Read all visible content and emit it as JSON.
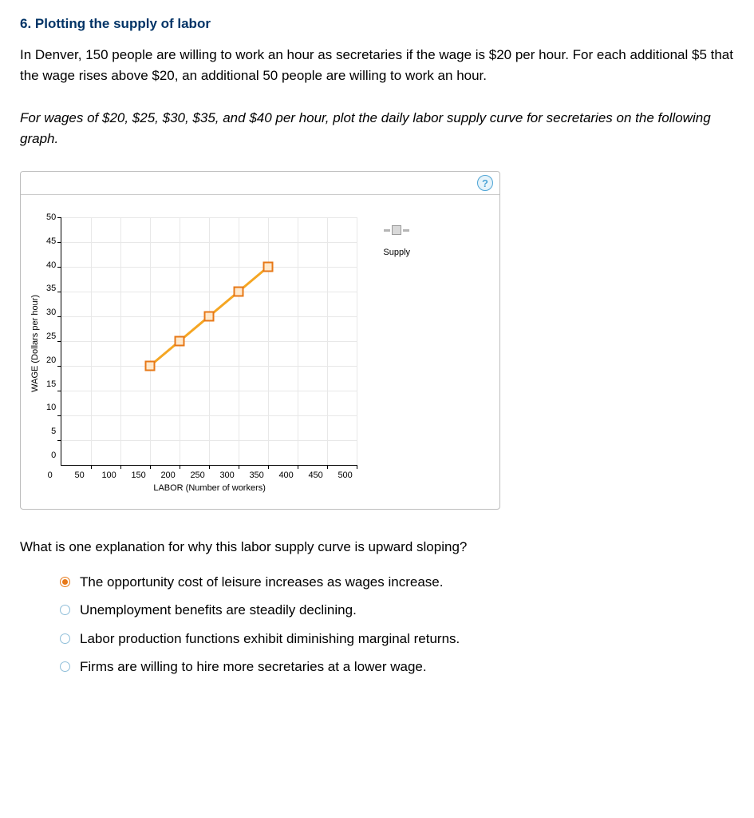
{
  "title": "6. Plotting the supply of labor",
  "para1": "In Denver, 150 people are willing to work an hour as secretaries if the wage is $20 per hour. For each additional $5 that the wage rises above $20, an additional 50 people are willing to work an hour.",
  "para2": "For wages of $20, $25, $30, $35, and $40 per hour, plot the daily labor supply curve for secretaries on the following graph.",
  "help_icon": "?",
  "chart": {
    "type": "line",
    "y_label": "WAGE (Dollars per hour)",
    "x_label": "LABOR (Number of workers)",
    "xlim": [
      0,
      500
    ],
    "xtick_step": 50,
    "ylim": [
      0,
      50
    ],
    "ytick_step": 5,
    "line_color": "#f5a623",
    "marker_border": "#e77817",
    "marker_fill": "#ffe9cc",
    "marker_size": 11,
    "grid_color": "#e8e8e8",
    "points": [
      {
        "x": 150,
        "y": 20
      },
      {
        "x": 200,
        "y": 25
      },
      {
        "x": 250,
        "y": 30
      },
      {
        "x": 300,
        "y": 35
      },
      {
        "x": 350,
        "y": 40
      }
    ],
    "x_ticks": [
      0,
      50,
      100,
      150,
      200,
      250,
      300,
      350,
      400,
      450,
      500
    ],
    "y_ticks": [
      0,
      5,
      10,
      15,
      20,
      25,
      30,
      35,
      40,
      45,
      50
    ],
    "legend_label": "Supply"
  },
  "question": "What is one explanation for why this labor supply curve is upward sloping?",
  "options": [
    {
      "label": "The opportunity cost of leisure increases as wages increase.",
      "selected": true
    },
    {
      "label": "Unemployment benefits are steadily declining.",
      "selected": false
    },
    {
      "label": "Labor production functions exhibit diminishing marginal returns.",
      "selected": false
    },
    {
      "label": "Firms are willing to hire more secretaries at a lower wage.",
      "selected": false
    }
  ]
}
